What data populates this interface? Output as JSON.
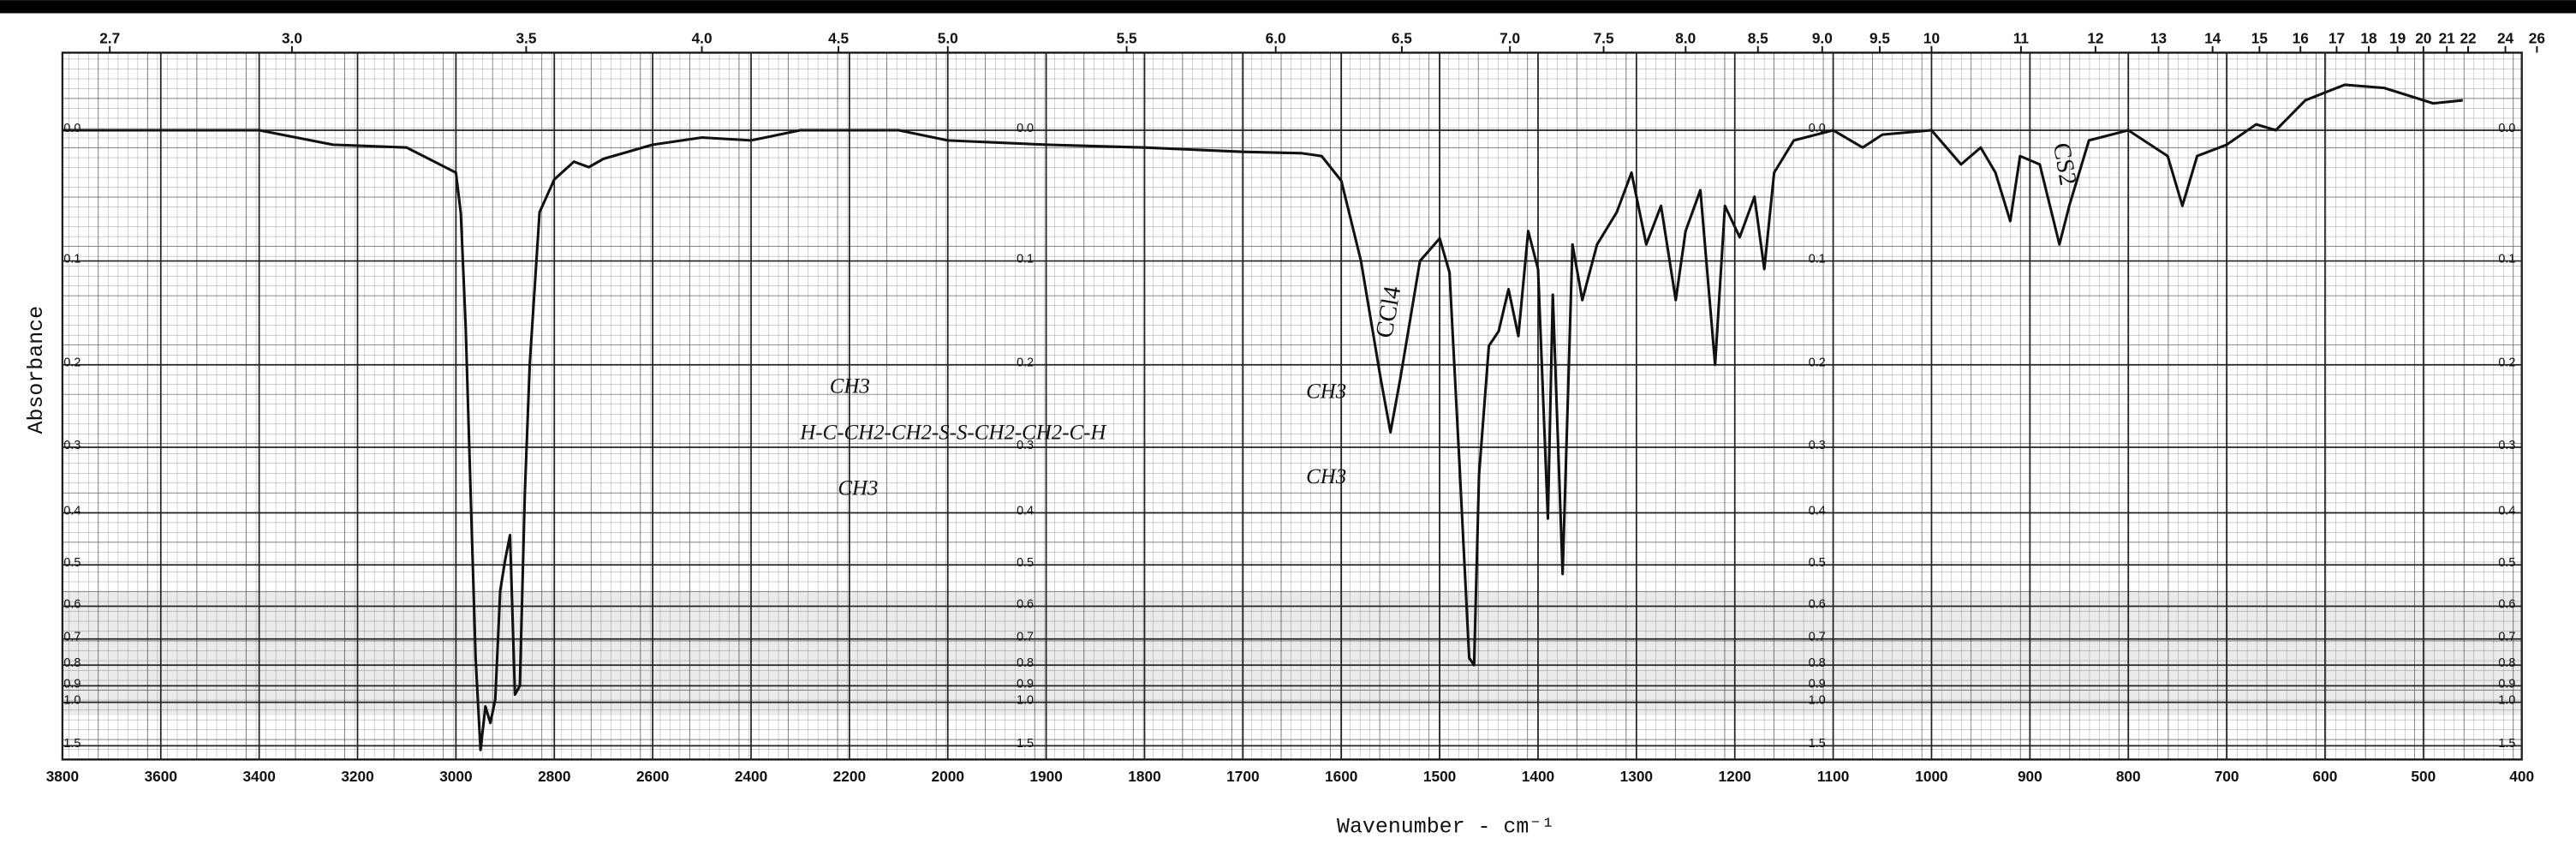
{
  "chart_data": {
    "type": "line",
    "x_label": "Wavenumber - cm⁻¹",
    "y_label": "Absorbance",
    "color": "#111111",
    "grid": true,
    "yscale": "absorbance",
    "xbreak": 2000,
    "xbreak_ratio": 2,
    "xlim": [
      3800,
      400
    ],
    "xticks": [
      3800,
      3600,
      3400,
      3200,
      3000,
      2800,
      2600,
      2400,
      2200,
      2000,
      1900,
      1800,
      1700,
      1600,
      1500,
      1400,
      1300,
      1200,
      1100,
      1000,
      900,
      800,
      700,
      600,
      500,
      400
    ],
    "x2ticks": [
      2.7,
      {
        "value": 3.0,
        "label": "3.0"
      },
      3.5,
      {
        "value": 4.0,
        "label": "4.0"
      },
      4.5,
      {
        "value": 5.0,
        "label": "5.0"
      },
      5.5,
      {
        "value": 6.0,
        "label": "6.0"
      },
      6.5,
      {
        "value": 7.0,
        "label": "7.0"
      },
      7.5,
      {
        "value": 8.0,
        "label": "8.0"
      },
      8.5,
      {
        "value": 9.0,
        "label": "9.0"
      },
      9.5,
      10,
      11,
      12,
      13,
      14,
      15,
      16,
      17,
      18,
      19,
      20,
      21,
      22,
      24,
      26
    ],
    "ylim": [
      -0.05,
      2.0
    ],
    "yticks": [
      {
        "value": 0,
        "label": "0.0"
      },
      0.1,
      0.2,
      0.3,
      0.4,
      0.5,
      0.6,
      0.7,
      0.8,
      0.9,
      {
        "value": 1,
        "label": "1.0"
      },
      1.5
    ],
    "annotations": [
      {
        "text": "CCl4",
        "x": 1550
      },
      {
        "text": "CS2",
        "x": 860
      },
      {
        "text": "CH3"
      },
      {
        "text": "H-C-CH2-CH2-S-S-CH2-CH2-C-H"
      },
      {
        "text": "CH3"
      },
      {
        "text": "CH3"
      },
      {
        "text": "CH3"
      }
    ],
    "x": [
      3800,
      3600,
      3400,
      3250,
      3100,
      3000,
      2990,
      2980,
      2970,
      2960,
      2950,
      2940,
      2930,
      2920,
      2910,
      2900,
      2890,
      2880,
      2870,
      2860,
      2850,
      2830,
      2800,
      2760,
      2730,
      2700,
      2600,
      2500,
      2400,
      2300,
      2200,
      2100,
      2000,
      1900,
      1800,
      1700,
      1640,
      1620,
      1600,
      1580,
      1560,
      1550,
      1540,
      1520,
      1500,
      1490,
      1480,
      1470,
      1465,
      1460,
      1450,
      1440,
      1430,
      1420,
      1410,
      1400,
      1390,
      1385,
      1375,
      1365,
      1355,
      1340,
      1320,
      1305,
      1290,
      1275,
      1260,
      1250,
      1235,
      1220,
      1210,
      1195,
      1180,
      1170,
      1160,
      1140,
      1100,
      1070,
      1050,
      1000,
      970,
      950,
      935,
      920,
      910,
      890,
      870,
      860,
      840,
      800,
      760,
      745,
      730,
      700,
      670,
      650,
      620,
      580,
      540,
      490,
      460
    ],
    "values": [
      0,
      0,
      0,
      0.01,
      0.012,
      0.03,
      0.061,
      0.163,
      0.37,
      0.77,
      1.6,
      1.03,
      1.17,
      0.98,
      0.56,
      0.49,
      0.44,
      0.95,
      0.9,
      0.37,
      0.2,
      0.06,
      0.035,
      0.022,
      0.026,
      0.02,
      0.01,
      0.005,
      0.007,
      0,
      0,
      0,
      0.007,
      0.01,
      0.012,
      0.015,
      0.016,
      0.018,
      0.036,
      0.1,
      0.215,
      0.28,
      0.215,
      0.1,
      0.081,
      0.11,
      0.32,
      0.77,
      0.8,
      0.34,
      0.18,
      0.165,
      0.125,
      0.17,
      0.075,
      0.107,
      0.41,
      0.13,
      0.52,
      0.086,
      0.135,
      0.086,
      0.06,
      0.03,
      0.086,
      0.055,
      0.135,
      0.075,
      0.043,
      0.2,
      0.055,
      0.08,
      0.048,
      0.107,
      0.03,
      0.007,
      0,
      0.012,
      0.003,
      0,
      0.024,
      0.012,
      0.03,
      0.067,
      0.018,
      0.024,
      0.086,
      0.055,
      0.007,
      0,
      0.018,
      0.055,
      0.018,
      0.01,
      -0.004,
      0,
      -0.02,
      -0.03,
      -0.028,
      -0.018,
      -0.02
    ]
  }
}
